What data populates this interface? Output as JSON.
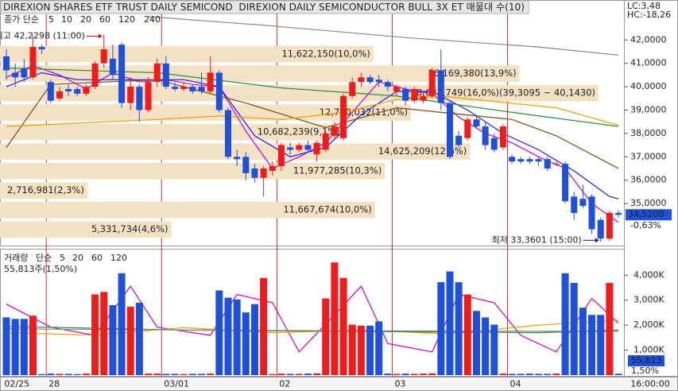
{
  "chart_data": [
    {
      "type": "candlestick",
      "title": "DIREXION SHARES ETF TRUST DAILY SEMICOND  DIREXION DAILY SEMICONDUCTOR BULL 3X ET 매물대 수(10)",
      "legend_prefix": "종가 단순",
      "up_color": "#f01c1c",
      "down_color": "#1e50dc",
      "open": [
        41.3,
        40.6,
        40.8,
        40.4,
        41.7,
        40.2,
        39.5,
        39.9,
        39.9,
        39.7,
        40.0,
        41.0,
        41.2,
        41.8,
        39.3,
        40.0,
        39.0,
        40.2,
        41.0,
        40.0,
        39.9,
        40.0,
        40.0,
        39.8,
        40.6,
        39.0,
        37.0,
        37.0,
        36.5,
        36.1,
        36.4,
        36.6,
        37.4,
        37.3,
        37.5,
        37.1,
        37.3,
        37.9,
        37.8,
        39.6,
        40.2,
        40.4,
        40.3,
        40.2,
        39.8,
        39.9,
        39.4,
        39.4,
        39.6,
        40.7,
        39.3,
        37.9,
        37.8,
        38.6,
        38.3,
        37.8,
        37.4,
        37.0,
        36.9,
        36.9,
        36.9,
        36.9,
        36.7,
        36.7,
        35.3,
        35.2,
        35.3,
        34.3,
        33.5,
        34.6
      ],
      "high": [
        41.6,
        41.0,
        41.2,
        42.2,
        41.8,
        40.3,
        40.0,
        40.1,
        40.0,
        40.1,
        41.1,
        42.2298,
        41.8,
        41.9,
        40.4,
        40.1,
        40.4,
        41.2,
        41.3,
        40.2,
        40.2,
        40.1,
        40.6,
        41.3,
        40.7,
        39.1,
        37.3,
        37.2,
        36.7,
        36.6,
        36.8,
        37.6,
        37.6,
        37.6,
        37.7,
        37.7,
        38.1,
        38.5,
        39.7,
        40.4,
        40.6,
        40.5,
        40.5,
        40.3,
        40.1,
        40.0,
        40.0,
        39.8,
        40.8,
        41.6,
        39.4,
        38.1,
        38.7,
        38.8,
        38.5,
        38.0,
        38.4,
        37.1,
        37.0,
        37.0,
        37.0,
        37.0,
        36.8,
        36.8,
        35.5,
        35.8,
        35.4,
        34.4,
        34.7,
        34.7
      ],
      "low": [
        40.3,
        40.0,
        40.2,
        40.3,
        41.4,
        39.3,
        39.4,
        39.6,
        39.6,
        39.6,
        39.9,
        40.8,
        40.3,
        39.1,
        39.0,
        38.5,
        38.9,
        40.0,
        39.9,
        39.8,
        39.8,
        39.7,
        39.7,
        39.7,
        38.9,
        36.9,
        36.6,
        36.0,
        35.9,
        35.3,
        36.2,
        36.4,
        37.1,
        37.2,
        37.2,
        36.8,
        37.2,
        37.8,
        37.7,
        39.5,
        40.0,
        40.1,
        40.0,
        39.8,
        39.6,
        39.2,
        39.3,
        39.3,
        39.5,
        39.0,
        36.9,
        37.4,
        37.7,
        38.2,
        37.3,
        37.2,
        37.3,
        36.7,
        36.7,
        36.7,
        36.6,
        36.4,
        36.6,
        35.0,
        34.3,
        34.8,
        33.7,
        33.3601,
        33.4,
        34.4
      ],
      "close": [
        40.7,
        40.4,
        40.4,
        41.7,
        41.6,
        39.4,
        39.8,
        39.8,
        39.7,
        40.0,
        41.0,
        41.6,
        40.5,
        39.3,
        40.0,
        39.0,
        40.2,
        41.0,
        40.0,
        39.9,
        40.0,
        39.8,
        39.8,
        40.6,
        39.0,
        37.0,
        36.9,
        36.3,
        36.1,
        36.5,
        36.6,
        37.5,
        37.3,
        37.5,
        37.3,
        37.6,
        38.0,
        38.3,
        39.6,
        40.2,
        40.4,
        40.2,
        40.2,
        40.0,
        40.0,
        39.4,
        39.9,
        39.6,
        40.7,
        39.3,
        37.0,
        37.5,
        38.6,
        38.3,
        37.5,
        37.3,
        38.3,
        36.8,
        36.8,
        36.8,
        36.8,
        36.5,
        36.7,
        35.1,
        34.6,
        34.9,
        33.9,
        33.5,
        34.6,
        34.52
      ],
      "ylim": [
        33.27,
        43.2
      ],
      "yticks": [
        {
          "value": 35,
          "label": "35,0000"
        },
        {
          "value": 36,
          "label": "36,0000"
        },
        {
          "value": 37,
          "label": "37,0000"
        },
        {
          "value": 38,
          "label": "38,0000"
        },
        {
          "value": 39,
          "label": "39,0000"
        },
        {
          "value": 40,
          "label": "40,0000"
        },
        {
          "value": 41,
          "label": "41,0000"
        },
        {
          "value": 42,
          "label": "42,0000"
        }
      ],
      "ma": [
        {
          "name": "5",
          "color": "#cc00cc",
          "x": [
            0,
            3,
            6,
            9,
            12,
            15,
            18,
            21,
            24,
            27,
            30,
            33,
            36,
            39,
            42,
            45,
            48,
            51,
            54,
            57,
            60,
            63,
            66,
            69
          ],
          "values": [
            40.4,
            40.9,
            40.5,
            39.9,
            40.6,
            40.2,
            40.3,
            40.1,
            40.0,
            38.1,
            36.5,
            37.0,
            37.6,
            38.9,
            40.2,
            39.9,
            39.7,
            38.7,
            38.0,
            37.6,
            37.0,
            36.5,
            35.0,
            34.2
          ]
        },
        {
          "name": "10",
          "color": "#1a1aff",
          "x": [
            0,
            4,
            8,
            12,
            16,
            20,
            24,
            28,
            32,
            36,
            40,
            44,
            48,
            52,
            56,
            60,
            64,
            68,
            69
          ],
          "values": [
            40.0,
            40.6,
            40.3,
            40.3,
            40.3,
            40.3,
            40.0,
            37.9,
            37.0,
            37.4,
            38.8,
            39.8,
            39.8,
            39.0,
            38.0,
            37.3,
            36.4,
            35.3,
            35.2
          ]
        },
        {
          "name": "20",
          "color": "#7a4a10",
          "x": [
            0,
            5,
            17,
            27,
            36,
            44,
            49,
            57,
            62,
            69
          ],
          "values": [
            37.4,
            40.1,
            40.3,
            39.3,
            38.25,
            39.1,
            38.9,
            38.6,
            37.9,
            36.5
          ]
        },
        {
          "name": "60",
          "color": "#e8a000",
          "x": [
            0,
            17,
            24,
            31,
            38,
            44,
            49,
            62,
            69
          ],
          "values": [
            38.3,
            38.6,
            38.75,
            38.6,
            38.9,
            39.45,
            39.6,
            39.1,
            38.35
          ]
        },
        {
          "name": "120",
          "color": "#2e8b3e",
          "x": [
            0,
            17,
            31,
            44,
            57,
            69
          ],
          "values": [
            40.8,
            40.6,
            39.95,
            39.6,
            38.9,
            38.3
          ]
        },
        {
          "name": "240",
          "color": "#888888",
          "x": [
            16,
            30,
            45,
            60,
            69
          ],
          "values": [
            43.0,
            42.6,
            42.1,
            41.7,
            41.35
          ]
        }
      ],
      "profile": {
        "color": "#f3e1c4",
        "bins": [
          41.81,
          40.9765,
          40.143,
          39.3095,
          38.476,
          37.6425,
          36.809,
          35.9755,
          35.142,
          34.3085,
          33.475
        ],
        "values": [
          11622150,
          16169380,
          18627749,
          12790032,
          10682239,
          14625209,
          11977285,
          2716981,
          11667674,
          5331734
        ],
        "value_labels": [
          "11,622,150(10,0%)",
          "16,169,380(13,9%)",
          "18,627,749(16,0%)(39,3095 ~ 40,1430)",
          "12,790,032(11,0%)",
          "10,682,239(9,1%)",
          "14,625,209(12,6%)",
          "11,977,285(10,3%)",
          "2,716,981(2,3%)",
          "11,667,674(10,0%)",
          "5,331,734(4,6%)"
        ],
        "xlim": [
          0,
          21100000
        ]
      },
      "high_label": "최고 42,2298 (11:00)",
      "low_label": "최저 33,3601 (15:00)",
      "lc_label": "LC:3,48",
      "hc_label": "HC:-18,26",
      "last": {
        "value": 34.52,
        "label": "34,5200"
      },
      "change_label": "-0,63%"
    },
    {
      "type": "bar",
      "legend_title": "거래량",
      "legend_prefix": "단순",
      "subtitle": "55,813주(1,50%)",
      "categories": [
        "02/25",
        null,
        null,
        null,
        null,
        "28",
        null,
        null,
        null,
        null,
        null,
        null,
        null,
        null,
        null,
        null,
        null,
        null,
        "03/01",
        null,
        null,
        null,
        null,
        null,
        null,
        null,
        null,
        null,
        null,
        null,
        null,
        "02",
        null,
        null,
        null,
        null,
        null,
        null,
        null,
        null,
        null,
        null,
        null,
        null,
        "03",
        null,
        null,
        null,
        null,
        null,
        null,
        null,
        null,
        null,
        null,
        null,
        null,
        "04",
        null,
        null,
        null,
        null,
        null,
        null,
        null,
        null,
        null,
        null,
        null,
        null
      ],
      "values": [
        2310,
        2250,
        2250,
        2380,
        40,
        60,
        50,
        50,
        40,
        60,
        3230,
        3330,
        2800,
        4080,
        2740,
        2900,
        60,
        60,
        50,
        50,
        40,
        50,
        50,
        60,
        3390,
        3100,
        3030,
        2510,
        2840,
        3890,
        40,
        60,
        50,
        50,
        60,
        70,
        3070,
        4510,
        3890,
        2020,
        1980,
        1980,
        2150,
        60,
        50,
        60,
        50,
        60,
        70,
        3720,
        4150,
        3720,
        3230,
        2570,
        2310,
        2020,
        60,
        50,
        50,
        60,
        50,
        50,
        60,
        4080,
        3690,
        2700,
        2410,
        2410,
        3690,
        55.813
      ],
      "ylim": [
        0,
        4900
      ],
      "yticks": [
        {
          "value": 1000,
          "label": "1,000K"
        },
        {
          "value": 2000,
          "label": "2,000K"
        },
        {
          "value": 3000,
          "label": "3,000K"
        },
        {
          "value": 4000,
          "label": "4,000K"
        }
      ],
      "ma": [
        {
          "name": "5",
          "color": "#cc00cc",
          "x": [
            0,
            5,
            10,
            14,
            17,
            23,
            26,
            30,
            33,
            37,
            40,
            43,
            48,
            51,
            55,
            58,
            62,
            66,
            69
          ],
          "values": [
            2840,
            1920,
            1590,
            3560,
            1920,
            1590,
            3230,
            2900,
            930,
            2410,
            3560,
            1260,
            930,
            3230,
            2900,
            1590,
            930,
            3070,
            2080
          ]
        },
        {
          "name": "20",
          "color": "#e8a000",
          "x": [
            0,
            10,
            20,
            30,
            40,
            50,
            60,
            69
          ],
          "values": [
            1700,
            1600,
            1900,
            1700,
            1800,
            1650,
            2000,
            2200
          ]
        },
        {
          "name": "60",
          "color": "#2e8b3e",
          "x": [
            0,
            20,
            40,
            60,
            69
          ],
          "values": [
            1950,
            1800,
            1750,
            1700,
            1800
          ]
        },
        {
          "name": "120",
          "color": "#888888",
          "x": [
            0,
            35,
            69
          ],
          "values": [
            1850,
            1780,
            1750
          ]
        }
      ],
      "last": {
        "value": 55.813,
        "label": "55,813"
      },
      "change_label": "1,50%",
      "time_label": "16:00:00"
    }
  ]
}
